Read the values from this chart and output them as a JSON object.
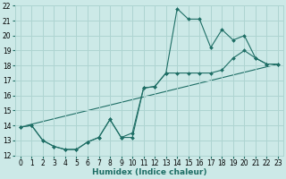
{
  "xlabel": "Humidex (Indice chaleur)",
  "xlim": [
    -0.5,
    23.5
  ],
  "ylim": [
    12,
    22
  ],
  "xticks": [
    0,
    1,
    2,
    3,
    4,
    5,
    6,
    7,
    8,
    9,
    10,
    11,
    12,
    13,
    14,
    15,
    16,
    17,
    18,
    19,
    20,
    21,
    22,
    23
  ],
  "yticks": [
    12,
    13,
    14,
    15,
    16,
    17,
    18,
    19,
    20,
    21,
    22
  ],
  "bg_color": "#cce9e7",
  "grid_color": "#aed4d1",
  "line_color": "#1e6e65",
  "line1_x": [
    0,
    1,
    2,
    3,
    4,
    5,
    6,
    7,
    8,
    9,
    10,
    11,
    12,
    13,
    14,
    15,
    16,
    17,
    18,
    19,
    20,
    21,
    22,
    23
  ],
  "line1_y": [
    13.9,
    14.0,
    13.0,
    12.6,
    12.4,
    12.4,
    12.9,
    13.2,
    14.4,
    13.2,
    13.2,
    16.5,
    16.6,
    17.5,
    21.8,
    21.1,
    21.1,
    19.2,
    20.4,
    19.7,
    20.0,
    18.5,
    18.1,
    18.1
  ],
  "line2_x": [
    0,
    1,
    2,
    3,
    4,
    5,
    6,
    7,
    8,
    9,
    10,
    11,
    12,
    13,
    14,
    15,
    16,
    17,
    18,
    19,
    20,
    21,
    22,
    23
  ],
  "line2_y": [
    13.9,
    14.0,
    13.0,
    12.6,
    12.4,
    12.4,
    12.9,
    13.2,
    14.4,
    13.2,
    13.5,
    16.5,
    16.6,
    17.5,
    17.5,
    17.5,
    17.5,
    17.5,
    17.7,
    18.5,
    19.0,
    18.5,
    18.1,
    18.1
  ],
  "line3_x": [
    0,
    23
  ],
  "line3_y": [
    13.9,
    18.1
  ],
  "tick_fontsize": 5.5,
  "xlabel_fontsize": 6.5
}
